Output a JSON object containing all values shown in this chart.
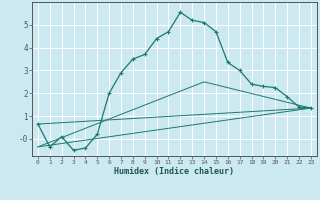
{
  "title": "",
  "xlabel": "Humidex (Indice chaleur)",
  "bg_color": "#cce8f0",
  "grid_color": "#ffffff",
  "line_color": "#1a7a6e",
  "xlim": [
    -0.5,
    23.5
  ],
  "ylim": [
    -0.75,
    6.0
  ],
  "yticks": [
    0,
    1,
    2,
    3,
    4,
    5
  ],
  "ytick_labels": [
    "-0",
    "1",
    "2",
    "3",
    "4",
    "5"
  ],
  "xticks": [
    0,
    1,
    2,
    3,
    4,
    5,
    6,
    7,
    8,
    9,
    10,
    11,
    12,
    13,
    14,
    15,
    16,
    17,
    18,
    19,
    20,
    21,
    22,
    23
  ],
  "main_x": [
    0,
    1,
    2,
    3,
    4,
    5,
    6,
    7,
    8,
    9,
    10,
    11,
    12,
    13,
    14,
    15,
    16,
    17,
    18,
    19,
    20,
    21,
    22,
    23
  ],
  "main_y": [
    0.65,
    -0.35,
    0.1,
    -0.5,
    -0.4,
    0.2,
    2.0,
    2.9,
    3.5,
    3.7,
    4.4,
    4.7,
    5.55,
    5.2,
    5.1,
    4.7,
    3.35,
    3.0,
    2.4,
    2.3,
    2.25,
    1.85,
    1.4,
    1.35
  ],
  "line1_x": [
    0,
    23
  ],
  "line1_y": [
    0.65,
    1.35
  ],
  "line2_x": [
    0,
    14,
    23
  ],
  "line2_y": [
    -0.35,
    2.5,
    1.35
  ],
  "line3_x": [
    0,
    23
  ],
  "line3_y": [
    -0.35,
    1.35
  ]
}
